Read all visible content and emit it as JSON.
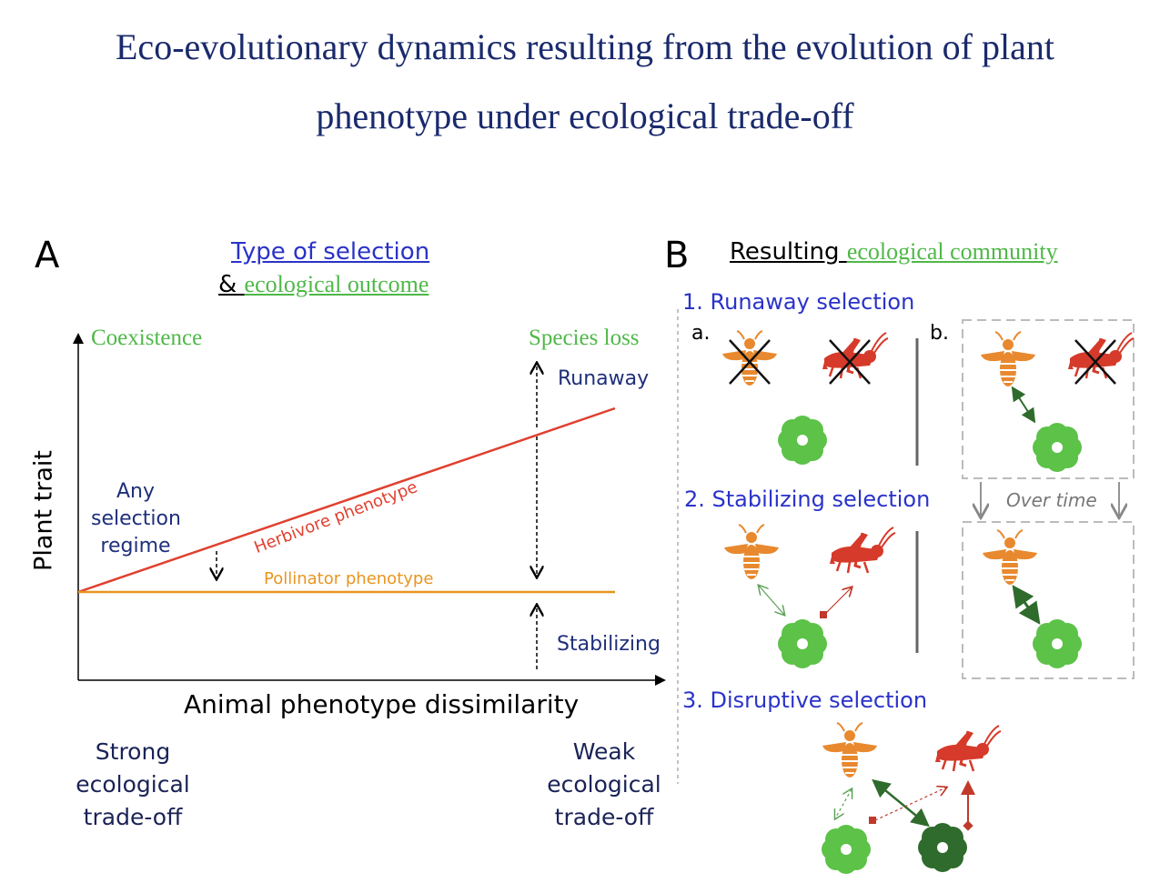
{
  "title": {
    "line1": "Eco-evolutionary dynamics resulting from the evolution of plant",
    "line2": "phenotype under ecological trade-off"
  },
  "panelA": {
    "letter": "A",
    "heading_type": "Type of selection",
    "heading_amp": "& ",
    "heading_outcome": "ecological outcome",
    "coexistence": "Coexistence",
    "species_loss": "Species loss",
    "runaway": "Runaway",
    "stabilizing": "Stabilizing",
    "any_line1": "Any",
    "any_line2": "selection",
    "any_line3": "regime",
    "herbivore_label": "Herbivore phenotype",
    "pollinator_label": "Pollinator phenotype",
    "ylabel": "Plant trait",
    "xlabel": "Animal phenotype dissimilarity",
    "strong_line1": "Strong",
    "strong_line2": "ecological",
    "strong_line3": "trade-off",
    "weak_line1": "Weak",
    "weak_line2": "ecological",
    "weak_line3": "trade-off"
  },
  "panelB": {
    "letter": "B",
    "heading_resulting": "Resulting ",
    "heading_community": "ecological community",
    "runaway": "1. Runaway selection",
    "sub_a": "a.",
    "sub_b": "b.",
    "stabilizing": "2. Stabilizing selection",
    "over_time": "Over time",
    "disruptive": "3. Disruptive selection"
  },
  "colors": {
    "herbivore": "#e0402f",
    "pollinator": "#e8951f",
    "bee": "#e8892f",
    "grasshopper": "#d63a2a",
    "flower_light": "#5cc248",
    "flower_dark": "#2f6b2c",
    "title": "#1a2a6c"
  }
}
